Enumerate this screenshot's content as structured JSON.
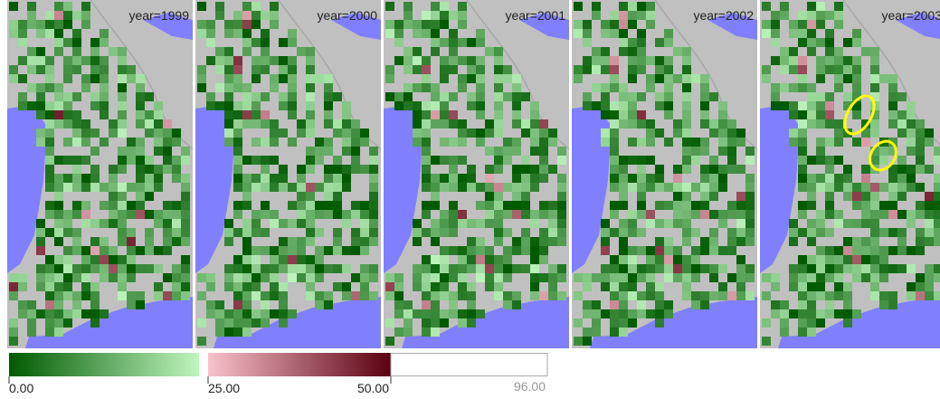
{
  "panels": [
    {
      "title": "year=1999"
    },
    {
      "title": "year=2000"
    },
    {
      "title": "year=2001"
    },
    {
      "title": "year=2002"
    },
    {
      "title": "year=2003"
    }
  ],
  "legend": {
    "labels": [
      "0.00",
      "25.00",
      "50.00",
      "96.00"
    ]
  }
}
